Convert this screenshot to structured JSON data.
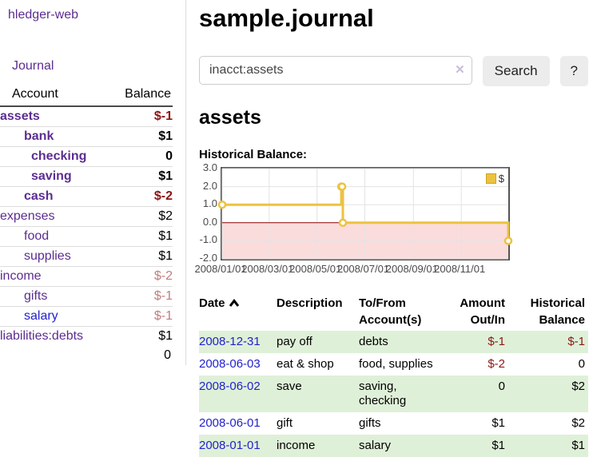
{
  "app": {
    "brand": "hledger-web",
    "nav": {
      "journal": "Journal"
    }
  },
  "sidebar": {
    "header": {
      "account": "Account",
      "balance": "Balance"
    },
    "accounts": [
      {
        "name": "assets",
        "balance": "$-1",
        "indent": 0,
        "bold": true,
        "value_style": "neg-strong",
        "link_style": "purple"
      },
      {
        "name": "bank",
        "balance": "$1",
        "indent": 1,
        "bold": true,
        "value_style": "normal",
        "link_style": "purple"
      },
      {
        "name": "checking",
        "balance": "0",
        "indent": 2,
        "bold": true,
        "value_style": "normal",
        "link_style": "purple"
      },
      {
        "name": "saving",
        "balance": "$1",
        "indent": 2,
        "bold": true,
        "value_style": "normal",
        "link_style": "purple"
      },
      {
        "name": "cash",
        "balance": "$-2",
        "indent": 1,
        "bold": true,
        "value_style": "neg-strong",
        "link_style": "purple"
      },
      {
        "name": "expenses",
        "balance": "$2",
        "indent": 0,
        "bold": false,
        "value_style": "normal",
        "link_style": "purple"
      },
      {
        "name": "food",
        "balance": "$1",
        "indent": 1,
        "bold": false,
        "value_style": "normal",
        "link_style": "purple"
      },
      {
        "name": "supplies",
        "balance": "$1",
        "indent": 1,
        "bold": false,
        "value_style": "normal",
        "link_style": "purple"
      },
      {
        "name": "income",
        "balance": "$-2",
        "indent": 0,
        "bold": false,
        "value_style": "neg-soft",
        "link_style": "purple"
      },
      {
        "name": "gifts",
        "balance": "$-1",
        "indent": 1,
        "bold": false,
        "value_style": "neg-soft",
        "link_style": "purple"
      },
      {
        "name": "salary",
        "balance": "$-1",
        "indent": 1,
        "bold": false,
        "value_style": "neg-soft",
        "link_style": "blue"
      },
      {
        "name": "liabilities:debts",
        "balance": "$1",
        "indent": 0,
        "bold": false,
        "value_style": "normal",
        "link_style": "purple"
      }
    ],
    "total": "0"
  },
  "main": {
    "title": "sample.journal",
    "search": {
      "value": "inacct:assets",
      "clear_icon": "✕",
      "search_label": "Search",
      "help_label": "?"
    },
    "account_title": "assets",
    "chart_heading": "Historical Balance:"
  },
  "chart_data": {
    "type": "line",
    "step": true,
    "title": "Historical Balance",
    "series": [
      {
        "name": "$",
        "color": "#edc240",
        "points": [
          {
            "date": "2008-01-01",
            "value": 1
          },
          {
            "date": "2008-06-01",
            "value": 2
          },
          {
            "date": "2008-06-02",
            "value": 2
          },
          {
            "date": "2008-06-03",
            "value": 0
          },
          {
            "date": "2008-12-31",
            "value": -1
          }
        ]
      }
    ],
    "x_range": [
      "2008-01-01",
      "2008-12-31"
    ],
    "y_range": [
      -2,
      3
    ],
    "x_tick_labels": [
      "2008/01/01",
      "2008/03/01",
      "2008/05/01",
      "2008/07/01",
      "2008/09/01",
      "2008/11/01"
    ],
    "y_tick_labels": [
      "3.0",
      "2.0",
      "1.0",
      "0.0",
      "-1.0",
      "-2.0"
    ],
    "grid": true,
    "gridline_color": "#e3e3e3",
    "legend": {
      "label": "$",
      "position": "top-right",
      "swatch_color": "#edc240"
    },
    "negative_region_color": "#fbdcdc",
    "zero_line_color": "#8b0000"
  },
  "register": {
    "columns": [
      {
        "line1": "Date",
        "line2": "",
        "align": "left",
        "sorted": "asc"
      },
      {
        "line1": "Description",
        "line2": "",
        "align": "left"
      },
      {
        "line1": "To/From",
        "line2": "Account(s)",
        "align": "left"
      },
      {
        "line1": "Amount",
        "line2": "Out/In",
        "align": "right"
      },
      {
        "line1": "Historical",
        "line2": "Balance",
        "align": "right"
      }
    ],
    "rows": [
      {
        "date": "2008-12-31",
        "description": "pay off",
        "account": "debts",
        "amount": "$-1",
        "balance": "$-1",
        "highlight": true
      },
      {
        "date": "2008-06-03",
        "description": "eat & shop",
        "account": "food, supplies",
        "amount": "$-2",
        "balance": "0",
        "highlight": false
      },
      {
        "date": "2008-06-02",
        "description": "save",
        "account": "saving, checking",
        "amount": "0",
        "balance": "$2",
        "highlight": true
      },
      {
        "date": "2008-06-01",
        "description": "gift",
        "account": "gifts",
        "amount": "$1",
        "balance": "$2",
        "highlight": false
      },
      {
        "date": "2008-01-01",
        "description": "income",
        "account": "salary",
        "amount": "$1",
        "balance": "$1",
        "highlight": true
      }
    ]
  },
  "colors": {
    "link_purple": "#5c2d91",
    "link_blue": "#2222cc",
    "negative_strong": "#8b1414",
    "negative_soft": "#c27d7d",
    "row_highlight": "#dff0d8",
    "accent_gold": "#edc240"
  }
}
